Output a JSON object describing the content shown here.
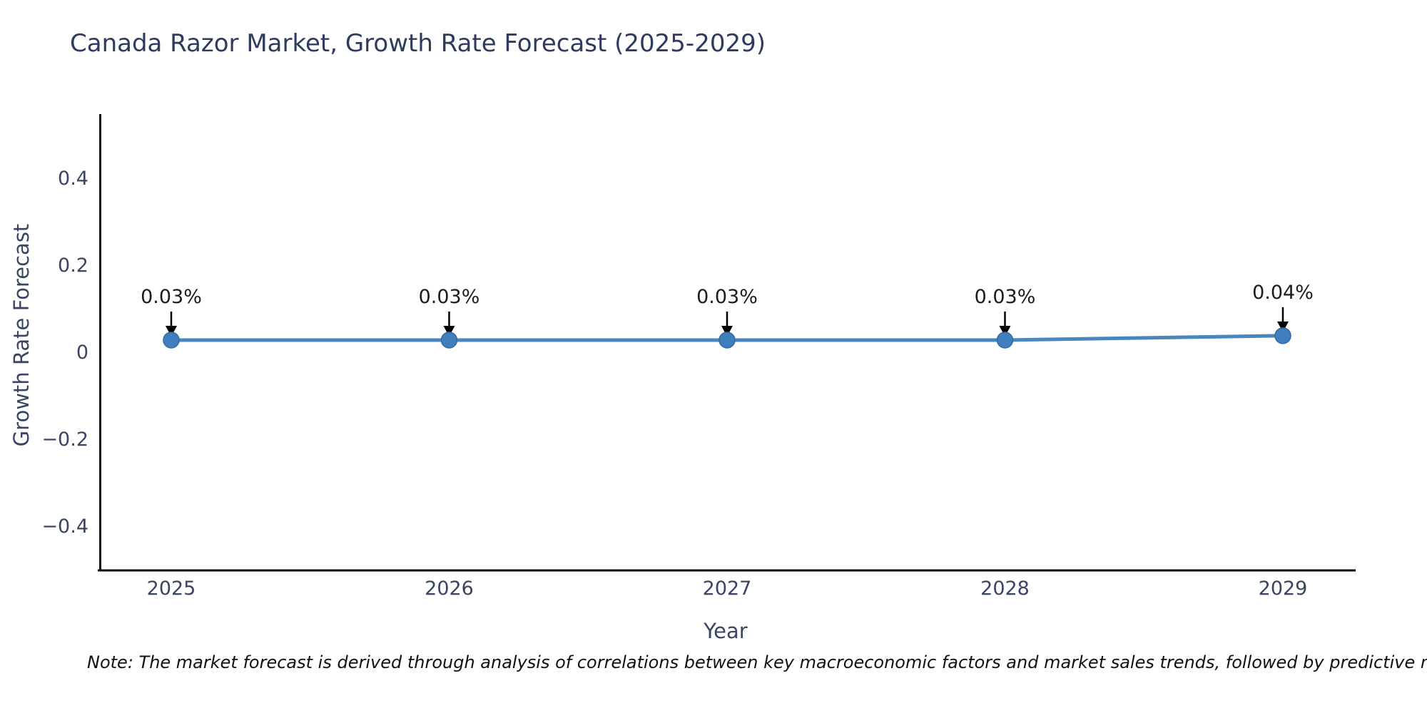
{
  "title": "Canada Razor Market, Growth Rate Forecast (2025-2029)",
  "note": "Note: The market forecast is derived through analysis of correlations between key macroeconomic factors and market sales trends, followed by predictive modeling to project future sales.",
  "colors": {
    "title_text": "#2e3b5e",
    "axis_text": "#3a4563",
    "annotation_text": "#1c1c1c",
    "spine": "#0e0e0e",
    "line": "#4a86be",
    "marker_fill": "#3f7fbd",
    "marker_edge": "#36699c",
    "arrow": "#000000",
    "background": "#ffffff"
  },
  "chart_data": {
    "type": "line",
    "title": "Canada Razor Market, Growth Rate Forecast (2025-2029)",
    "xlabel": "Year",
    "ylabel": "Growth Rate Forecast",
    "categories": [
      "2025",
      "2026",
      "2027",
      "2028",
      "2029"
    ],
    "series": [
      {
        "name": "Growth Rate Forecast",
        "values": [
          0.03,
          0.03,
          0.03,
          0.03,
          0.04
        ]
      }
    ],
    "point_labels": [
      "0.03%",
      "0.03%",
      "0.03%",
      "0.03%",
      "0.04%"
    ],
    "yticks": [
      {
        "label": "0.4",
        "value": 0.4
      },
      {
        "label": "0.2",
        "value": 0.2
      },
      {
        "label": "0",
        "value": 0
      },
      {
        "label": "−0.2",
        "value": -0.2
      },
      {
        "label": "−0.4",
        "value": -0.4
      }
    ],
    "ylim": [
      -0.5,
      0.55
    ],
    "grid": false,
    "legend": false,
    "marker": "circle",
    "annotations_have_arrows": true
  }
}
